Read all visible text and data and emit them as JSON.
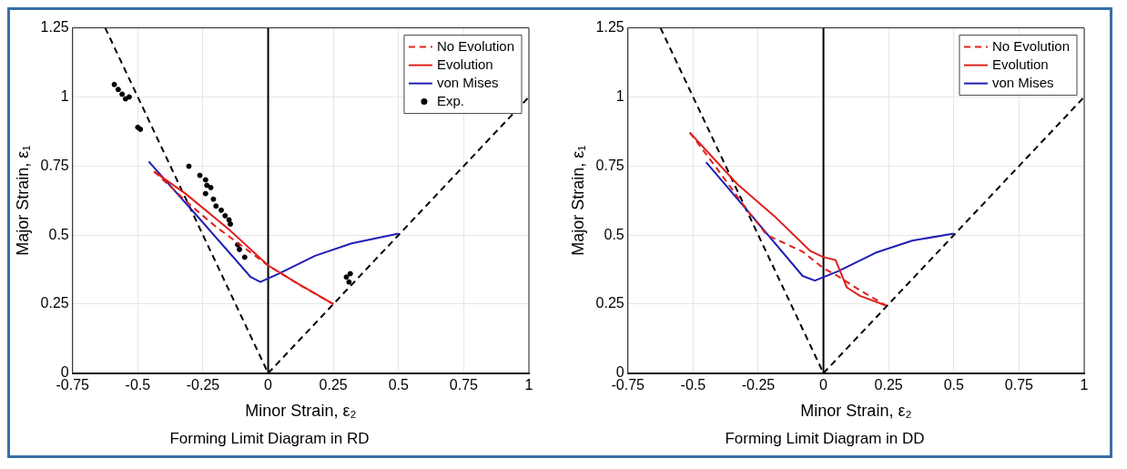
{
  "chart_data": [
    {
      "type": "line",
      "title": "Forming Limit Diagram in RD",
      "xlabel": "Minor Strain, ε₂",
      "ylabel": "Major Strain, ε₁",
      "xlim": [
        -0.75,
        1
      ],
      "xticks": [
        -0.75,
        -0.5,
        -0.25,
        0,
        0.25,
        0.5,
        0.75,
        1
      ],
      "ylim": [
        0,
        1.25
      ],
      "yticks": [
        0,
        0.25,
        0.5,
        0.75,
        1,
        1.25
      ],
      "grid": true,
      "legend": "top right",
      "ref_lines": [
        {
          "axis": "x",
          "value": 0,
          "color": "#000000",
          "line_style": "solid"
        }
      ],
      "series": [
        {
          "name": "No Evolution",
          "type": "line",
          "color": "#e0201b",
          "line_style": "dashed",
          "x": [
            -0.4375,
            -0.3,
            -0.2,
            -0.1,
            0,
            0.12,
            0.25
          ],
          "values": [
            0.73,
            0.61,
            0.53,
            0.46,
            0.39,
            0.32,
            0.25
          ]
        },
        {
          "name": "Evolution",
          "type": "line",
          "color": "#e0201b",
          "line_style": "solid",
          "x": [
            -0.4375,
            -0.317,
            -0.15,
            0,
            0.112,
            0.25
          ],
          "values": [
            0.73,
            0.65,
            0.52,
            0.39,
            0.325,
            0.25
          ]
        },
        {
          "name": "von Mises",
          "type": "line",
          "color": "#1f1fb4",
          "line_style": "solid",
          "x": [
            -0.458,
            -0.262,
            -0.067,
            -0.03,
            0.04,
            0.18,
            0.32,
            0.5
          ],
          "values": [
            0.766,
            0.558,
            0.348,
            0.33,
            0.36,
            0.425,
            0.47,
            0.505
          ]
        },
        {
          "name": "Exp.",
          "type": "scatter",
          "color": "#000000",
          "marker": "circle",
          "x": [
            -0.59,
            -0.575,
            -0.56,
            -0.547,
            -0.533,
            -0.5,
            -0.49,
            -0.304,
            -0.262,
            -0.24,
            -0.235,
            -0.22,
            -0.24,
            -0.21,
            -0.2,
            -0.18,
            -0.165,
            -0.15,
            -0.145,
            -0.117,
            -0.11,
            -0.09,
            0.3,
            0.31,
            0.315
          ],
          "values": [
            1.045,
            1.027,
            1.01,
            0.993,
            1,
            0.89,
            0.883,
            0.749,
            0.716,
            0.7,
            0.68,
            0.672,
            0.65,
            0.63,
            0.605,
            0.59,
            0.57,
            0.555,
            0.54,
            0.465,
            0.448,
            0.42,
            0.348,
            0.33,
            0.36
          ]
        },
        {
          "type": "line",
          "color": "#000000",
          "line_style": "dashed",
          "x": [
            -0.625,
            0
          ],
          "values": [
            1.25,
            0
          ]
        },
        {
          "type": "line",
          "color": "#000000",
          "line_style": "dashed",
          "x": [
            0,
            1
          ],
          "values": [
            0,
            1
          ]
        }
      ]
    },
    {
      "type": "line",
      "title": "Forming Limit Diagram in DD",
      "xlabel": "Minor Strain, ε₂",
      "ylabel": "Major Strain, ε₁",
      "xlim": [
        -0.75,
        1
      ],
      "xticks": [
        -0.75,
        -0.5,
        -0.25,
        0,
        0.25,
        0.5,
        0.75,
        1
      ],
      "ylim": [
        0,
        1.25
      ],
      "yticks": [
        0,
        0.25,
        0.5,
        0.75,
        1,
        1.25
      ],
      "grid": true,
      "legend": "top right",
      "ref_lines": [
        {
          "axis": "x",
          "value": 0,
          "color": "#000000",
          "line_style": "solid"
        }
      ],
      "series": [
        {
          "name": "No Evolution",
          "type": "line",
          "color": "#e0201b",
          "line_style": "dashed",
          "x": [
            -0.5125,
            -0.4,
            -0.3,
            -0.217,
            -0.08,
            0,
            0.058,
            0.14,
            0.24
          ],
          "values": [
            0.871,
            0.73,
            0.6,
            0.5,
            0.44,
            0.38,
            0.35,
            0.3,
            0.245
          ]
        },
        {
          "name": "Evolution",
          "type": "line",
          "color": "#e0201b",
          "line_style": "solid",
          "x": [
            -0.5125,
            -0.33,
            -0.19,
            -0.05,
            0,
            0.046,
            0.09,
            0.14,
            0.24
          ],
          "values": [
            0.871,
            0.684,
            0.57,
            0.442,
            0.42,
            0.41,
            0.31,
            0.28,
            0.245
          ]
        },
        {
          "name": "von Mises",
          "type": "line",
          "color": "#1f1fb4",
          "line_style": "solid",
          "x": [
            -0.45,
            -0.275,
            -0.08,
            -0.033,
            0.058,
            0.2,
            0.34,
            0.5
          ],
          "values": [
            0.764,
            0.57,
            0.352,
            0.335,
            0.37,
            0.436,
            0.48,
            0.505
          ]
        },
        {
          "type": "line",
          "color": "#000000",
          "line_style": "dashed",
          "x": [
            -0.625,
            0
          ],
          "values": [
            1.25,
            0
          ]
        },
        {
          "type": "line",
          "color": "#000000",
          "line_style": "dashed",
          "x": [
            0,
            1
          ],
          "values": [
            0,
            1
          ]
        }
      ]
    }
  ]
}
